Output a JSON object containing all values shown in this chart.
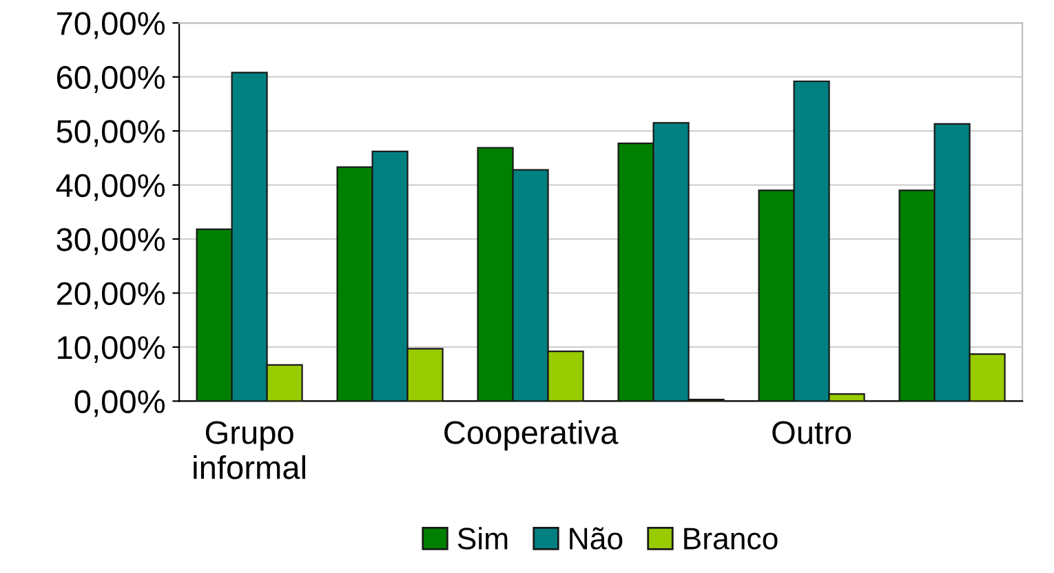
{
  "chart_data": {
    "type": "bar",
    "categories": [
      "Grupo\ninformal",
      null,
      "Cooperativa",
      null,
      "Outro",
      null
    ],
    "series": [
      {
        "name": "Sim",
        "color": "#008000",
        "values": [
          31.8,
          43.3,
          46.9,
          47.7,
          39.0,
          39.0
        ]
      },
      {
        "name": "Não",
        "color": "#008080",
        "values": [
          60.8,
          46.2,
          42.8,
          51.5,
          59.2,
          51.3
        ]
      },
      {
        "name": "Branco",
        "color": "#99cc00",
        "values": [
          6.7,
          9.7,
          9.2,
          0.3,
          1.3,
          8.7
        ]
      }
    ],
    "ylim": [
      0,
      70
    ],
    "yticks": [
      {
        "value": 0,
        "label": "0,00%"
      },
      {
        "value": 10,
        "label": "10,00%"
      },
      {
        "value": 20,
        "label": "20,00%"
      },
      {
        "value": 30,
        "label": "30,00%"
      },
      {
        "value": 40,
        "label": "40,00%"
      },
      {
        "value": 50,
        "label": "50,00%"
      },
      {
        "value": 60,
        "label": "60,00%"
      },
      {
        "value": 70,
        "label": "70,00%"
      }
    ],
    "grid": "y",
    "legend": "bottom"
  }
}
